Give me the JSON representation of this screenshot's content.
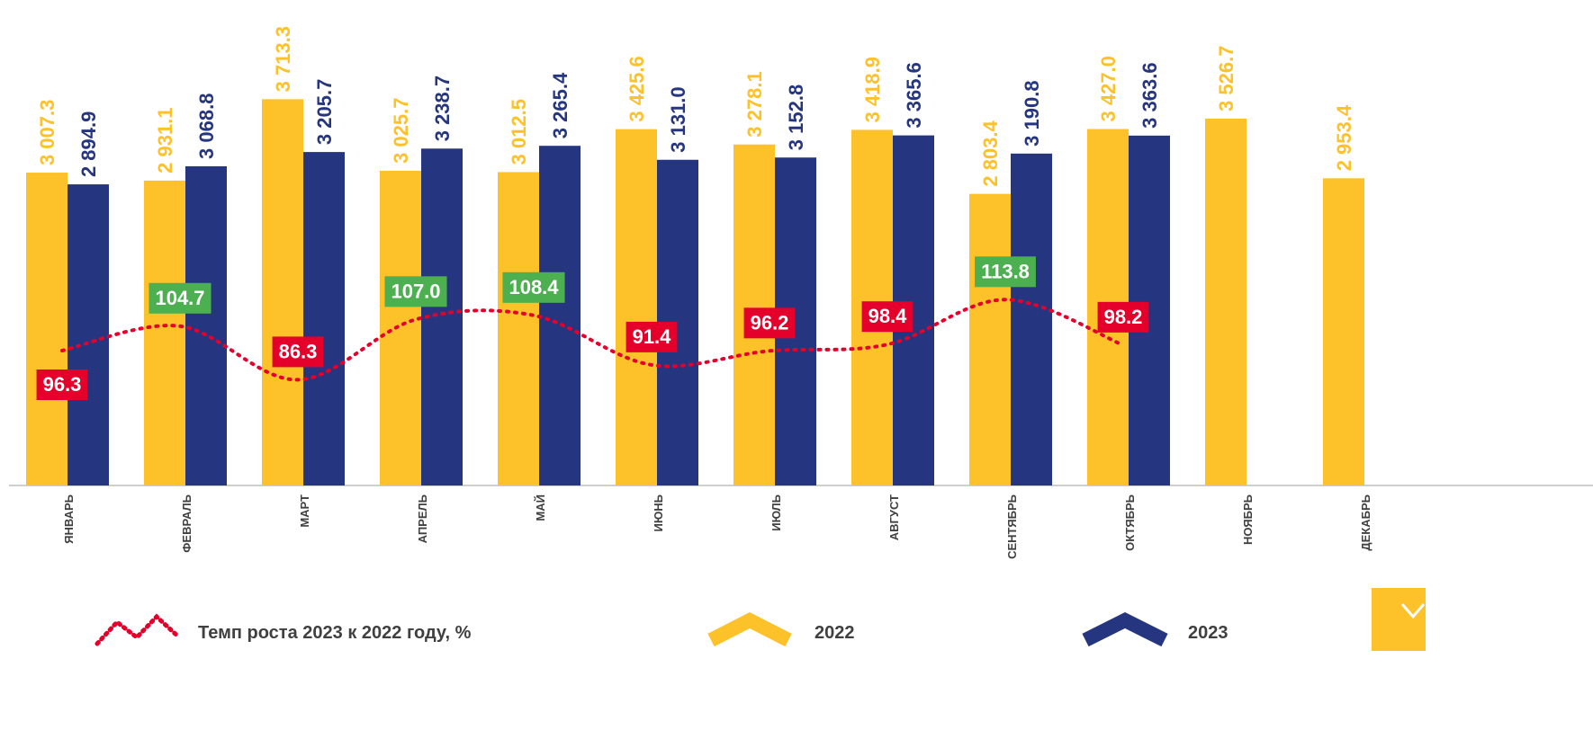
{
  "chart_data": {
    "type": "bar",
    "categories": [
      "ЯНВАРЬ",
      "ФЕВРАЛЬ",
      "МАРТ",
      "АПРЕЛЬ",
      "МАЙ",
      "ИЮНЬ",
      "ИЮЛЬ",
      "АВГУСТ",
      "СЕНТЯБРЬ",
      "ОКТЯБРЬ",
      "НОЯБРЬ",
      "ДЕКАБРЬ"
    ],
    "series": [
      {
        "name": "2022",
        "color": "#fdc12a",
        "values": [
          3007.3,
          2931.1,
          3713.3,
          3025.7,
          3012.5,
          3425.6,
          3278.1,
          3418.9,
          2803.4,
          3427.0,
          3526.7,
          2953.4
        ],
        "value_labels": [
          "3 007.3",
          "2 931.1",
          "3 713.3",
          "3 025.7",
          "3 012.5",
          "3 425.6",
          "3 278.1",
          "3 418.9",
          "2 803.4",
          "3 427.0",
          "3 526.7",
          "2 953.4"
        ]
      },
      {
        "name": "2023",
        "color": "#263580",
        "values": [
          2894.9,
          3068.8,
          3205.7,
          3238.7,
          3265.4,
          3131.0,
          3152.8,
          3365.6,
          3190.8,
          3363.6,
          null,
          null
        ],
        "value_labels": [
          "2 894.9",
          "3 068.8",
          "3 205.7",
          "3 238.7",
          "3 265.4",
          "3 131.0",
          "3 152.8",
          "3 365.6",
          "3 190.8",
          "3 363.6",
          null,
          null
        ]
      }
    ],
    "growth": {
      "name": "Темп роста 2023 к 2022 году, %",
      "color": "#e4002b",
      "values": [
        96.3,
        104.7,
        86.3,
        107.0,
        108.4,
        91.4,
        96.2,
        98.4,
        113.8,
        98.2
      ],
      "value_labels": [
        "96.3",
        "104.7",
        "86.3",
        "107.0",
        "108.4",
        "91.4",
        "96.2",
        "98.4",
        "113.8",
        "98.2"
      ],
      "label_colors": [
        "#e4002b",
        "#4caf50",
        "#e4002b",
        "#4caf50",
        "#4caf50",
        "#e4002b",
        "#e4002b",
        "#e4002b",
        "#4caf50",
        "#e4002b"
      ]
    }
  }
}
